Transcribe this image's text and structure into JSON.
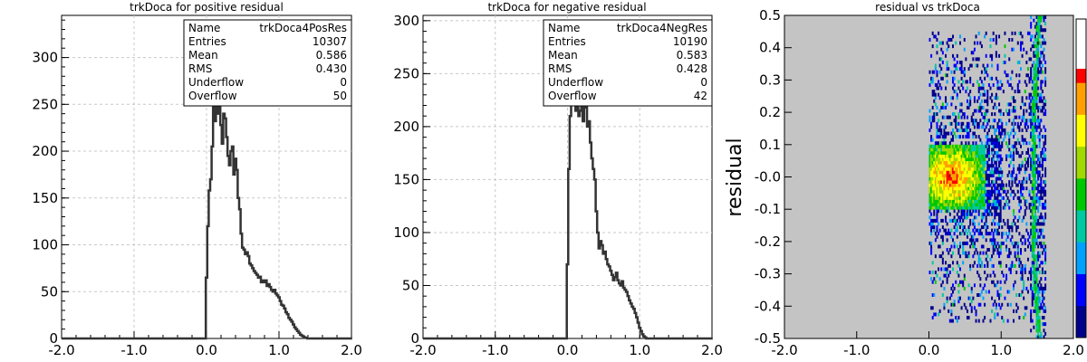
{
  "chart_data": [
    {
      "type": "histogram",
      "title": "trkDoca for positive residual",
      "xlim": [
        -2.0,
        2.0
      ],
      "ylim": [
        0,
        345
      ],
      "xticks": [
        "-2.0",
        "-1.0",
        "0.0",
        "1.0",
        "2.0"
      ],
      "yticks": [
        "0",
        "50",
        "100",
        "150",
        "200",
        "250",
        "300"
      ],
      "grid": true,
      "line_color": "#333333",
      "stats": [
        {
          "label": "Name",
          "value": "trkDoca4PosRes"
        },
        {
          "label": "Entries",
          "value": "10307"
        },
        {
          "label": "Mean",
          "value": "0.586"
        },
        {
          "label": "RMS",
          "value": "0.430"
        },
        {
          "label": "Underflow",
          "value": "0"
        },
        {
          "label": "Overflow",
          "value": "50"
        }
      ],
      "x": [
        -0.02,
        0.0,
        0.02,
        0.04,
        0.06,
        0.08,
        0.1,
        0.12,
        0.14,
        0.16,
        0.18,
        0.2,
        0.22,
        0.24,
        0.26,
        0.28,
        0.3,
        0.32,
        0.34,
        0.36,
        0.38,
        0.4,
        0.42,
        0.44,
        0.46,
        0.48,
        0.5,
        0.52,
        0.54,
        0.56,
        0.58,
        0.6,
        0.62,
        0.64,
        0.66,
        0.68,
        0.7,
        0.72,
        0.74,
        0.76,
        0.78,
        0.8,
        0.82,
        0.84,
        0.86,
        0.88,
        0.9,
        0.92,
        0.94,
        0.96,
        0.98,
        1.0,
        1.02,
        1.04,
        1.06,
        1.08,
        1.1,
        1.12,
        1.14,
        1.16,
        1.18,
        1.2,
        1.22,
        1.24,
        1.26,
        1.28,
        1.3,
        1.32,
        1.34,
        1.36,
        1.38,
        1.4,
        1.42,
        1.44,
        1.46,
        1.48,
        1.5,
        1.52,
        1.54,
        1.56,
        1.58,
        1.6,
        1.62,
        1.64,
        1.66,
        1.68,
        1.7,
        1.72,
        1.74,
        1.76,
        1.78,
        1.8,
        1.82,
        1.84,
        1.86,
        1.88,
        1.9,
        1.92,
        1.94,
        1.96,
        1.98,
        2.0
      ],
      "y": [
        0,
        65,
        120,
        158,
        170,
        205,
        250,
        232,
        270,
        240,
        262,
        228,
        208,
        240,
        235,
        215,
        195,
        185,
        200,
        205,
        175,
        192,
        180,
        150,
        138,
        112,
        97,
        95,
        90,
        92,
        88,
        80,
        78,
        75,
        72,
        70,
        68,
        65,
        66,
        60,
        62,
        60,
        62,
        56,
        58,
        55,
        52,
        50,
        52,
        48,
        46,
        44,
        40,
        36,
        35,
        32,
        28,
        26,
        22,
        20,
        18,
        15,
        12,
        10,
        8,
        6,
        4,
        3,
        2,
        1,
        1,
        0,
        0,
        0,
        0,
        0,
        0,
        0,
        0,
        0,
        0,
        0,
        0,
        0,
        0,
        0,
        0,
        0,
        0,
        0,
        0,
        0,
        0,
        0,
        0,
        0,
        0,
        0,
        0,
        0,
        0,
        0
      ]
    },
    {
      "type": "histogram",
      "title": "trkDoca for negative residual",
      "xlim": [
        -2.0,
        2.0
      ],
      "ylim": [
        0,
        305
      ],
      "xticks": [
        "-2.0",
        "-1.0",
        "0.0",
        "1.0",
        "2.0"
      ],
      "yticks": [
        "0",
        "50",
        "100",
        "150",
        "200",
        "250",
        "300"
      ],
      "grid": true,
      "line_color": "#333333",
      "stats": [
        {
          "label": "Name",
          "value": "trkDoca4NegRes"
        },
        {
          "label": "Entries",
          "value": "10190"
        },
        {
          "label": "Mean",
          "value": "0.583"
        },
        {
          "label": "RMS",
          "value": "0.428"
        },
        {
          "label": "Underflow",
          "value": "0"
        },
        {
          "label": "Overflow",
          "value": "42"
        }
      ],
      "x": [
        -0.02,
        0.0,
        0.02,
        0.04,
        0.06,
        0.08,
        0.1,
        0.12,
        0.14,
        0.16,
        0.18,
        0.2,
        0.22,
        0.24,
        0.26,
        0.28,
        0.3,
        0.32,
        0.34,
        0.36,
        0.38,
        0.4,
        0.42,
        0.44,
        0.46,
        0.48,
        0.5,
        0.52,
        0.54,
        0.56,
        0.58,
        0.6,
        0.62,
        0.64,
        0.66,
        0.68,
        0.7,
        0.72,
        0.74,
        0.76,
        0.78,
        0.8,
        0.82,
        0.84,
        0.86,
        0.88,
        0.9,
        0.92,
        0.94,
        0.96,
        0.98,
        1.0,
        1.02,
        1.04,
        1.06,
        1.08,
        1.1,
        1.12,
        1.14,
        1.16,
        1.18,
        1.2,
        1.22,
        1.24,
        1.26,
        1.28,
        1.3,
        1.32,
        1.34,
        1.36,
        1.38,
        1.4,
        1.42,
        1.44,
        1.46,
        1.48,
        1.5,
        1.52,
        1.54,
        1.56,
        1.58,
        1.6,
        1.62,
        1.64,
        1.66,
        1.68,
        1.7,
        1.72,
        1.74,
        1.76,
        1.78,
        1.8,
        1.82,
        1.84,
        1.86,
        1.88,
        1.9,
        1.92,
        1.94,
        1.96,
        1.98,
        2.0
      ],
      "y": [
        0,
        70,
        160,
        210,
        235,
        270,
        250,
        215,
        220,
        210,
        215,
        225,
        205,
        218,
        228,
        200,
        205,
        185,
        170,
        160,
        150,
        120,
        100,
        85,
        92,
        88,
        80,
        82,
        75,
        70,
        68,
        64,
        60,
        55,
        58,
        62,
        55,
        52,
        50,
        54,
        48,
        46,
        44,
        40,
        36,
        33,
        30,
        28,
        24,
        20,
        15,
        10,
        7,
        4,
        2,
        1,
        0,
        0,
        0,
        0,
        0,
        0,
        0,
        0,
        0,
        0,
        0,
        0,
        0,
        0,
        0,
        0,
        0,
        0,
        0,
        0,
        0,
        0,
        0,
        0,
        0,
        0,
        0,
        0,
        0,
        0,
        0,
        0,
        0,
        0,
        0,
        0,
        0,
        0,
        0,
        0,
        0,
        0,
        0,
        0,
        0,
        0
      ]
    },
    {
      "type": "heatmap",
      "title": "residual vs trkDoca",
      "ylabel": "residual",
      "xlim": [
        -2.0,
        2.0
      ],
      "ylim": [
        -0.5,
        0.5
      ],
      "xticks": [
        "-2.0",
        "-1.0",
        "0.0",
        "1.0",
        "2.0"
      ],
      "yticks": [
        "-0.5",
        "-0.4",
        "-0.3",
        "-0.2",
        "-0.1",
        "-0.0",
        "0.1",
        "0.2",
        "0.3",
        "0.4",
        "0.5"
      ],
      "background_color": "#c4c4c4",
      "colormap": [
        "#00008b",
        "#0000ff",
        "#00a0ff",
        "#00c8a0",
        "#00c800",
        "#a0d800",
        "#ffff00",
        "#ffa000",
        "#ff0000",
        "#8b0000"
      ],
      "description_of_density": [
        {
          "x_range": [
            0.0,
            0.75
          ],
          "y_range": [
            -0.1,
            0.1
          ],
          "level": "high"
        },
        {
          "x_range": [
            0.0,
            1.4
          ],
          "y_range": [
            -0.3,
            0.3
          ],
          "level": "medium"
        },
        {
          "x_range": [
            1.4,
            1.6
          ],
          "y_range": [
            -0.5,
            0.5
          ],
          "level": "medium"
        }
      ]
    }
  ]
}
